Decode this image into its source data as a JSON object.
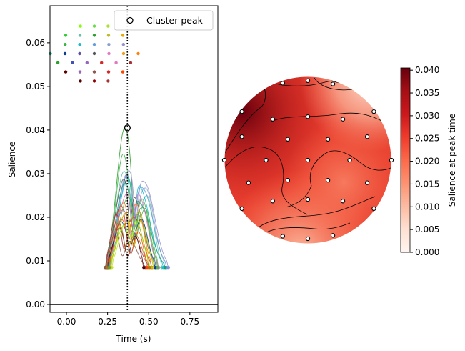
{
  "chart_data": [
    {
      "type": "line",
      "xlabel": "Time (s)",
      "ylabel": "Salience",
      "xlim": [
        -0.1,
        0.92
      ],
      "ylim": [
        -0.0018,
        0.0685
      ],
      "xticks": [
        0.0,
        0.25,
        0.5,
        0.75
      ],
      "xtick_labels": [
        "0.00",
        "0.25",
        "0.50",
        "0.75"
      ],
      "yticks": [
        0.0,
        0.01,
        0.02,
        0.03,
        0.04,
        0.05,
        0.06
      ],
      "ytick_labels": [
        "0.00",
        "0.01",
        "0.02",
        "0.03",
        "0.04",
        "0.05",
        "0.06"
      ],
      "peak_time": 0.37,
      "peak_value": 0.0405,
      "horizontal_line_y": 0.0,
      "legend": {
        "label": "Cluster peak",
        "placement": "top-right"
      },
      "series": [
        {
          "color": "#2ca02c",
          "start": 0.25,
          "end": 0.545,
          "peak_t": 0.355,
          "peak": 0.0405,
          "second_t": 0.475,
          "second": 0.021
        },
        {
          "color": "#3cb44b",
          "start": 0.255,
          "end": 0.56,
          "peak_t": 0.345,
          "peak": 0.0345,
          "second_t": 0.48,
          "second": 0.023
        },
        {
          "color": "#66c2a5",
          "start": 0.245,
          "end": 0.58,
          "peak_t": 0.35,
          "peak": 0.0305,
          "second_t": 0.49,
          "second": 0.026
        },
        {
          "color": "#8da0cb",
          "start": 0.26,
          "end": 0.6,
          "peak_t": 0.36,
          "peak": 0.029,
          "second_t": 0.485,
          "second": 0.0275
        },
        {
          "color": "#9a8fd1",
          "start": 0.265,
          "end": 0.62,
          "peak_t": 0.365,
          "peak": 0.0275,
          "second_t": 0.48,
          "second": 0.0285
        },
        {
          "color": "#5e9ed6",
          "start": 0.255,
          "end": 0.61,
          "peak_t": 0.355,
          "peak": 0.0265,
          "second_t": 0.47,
          "second": 0.027
        },
        {
          "color": "#17becf",
          "start": 0.25,
          "end": 0.59,
          "peak_t": 0.36,
          "peak": 0.0255,
          "second_t": 0.46,
          "second": 0.025
        },
        {
          "color": "#1b9e77",
          "start": 0.245,
          "end": 0.6,
          "peak_t": 0.345,
          "peak": 0.025,
          "second_t": 0.455,
          "second": 0.023
        },
        {
          "color": "#555555",
          "start": 0.24,
          "end": 0.54,
          "peak_t": 0.34,
          "peak": 0.0265,
          "second_t": 0.43,
          "second": 0.0215
        },
        {
          "color": "#e377c2",
          "start": 0.255,
          "end": 0.56,
          "peak_t": 0.355,
          "peak": 0.023,
          "second_t": 0.45,
          "second": 0.024
        },
        {
          "color": "#d62728",
          "start": 0.245,
          "end": 0.52,
          "peak_t": 0.325,
          "peak": 0.0215,
          "second_t": 0.42,
          "second": 0.02
        },
        {
          "color": "#a83232",
          "start": 0.24,
          "end": 0.5,
          "peak_t": 0.3,
          "peak": 0.02,
          "second_t": 0.4,
          "second": 0.0175
        },
        {
          "color": "#9467bd",
          "start": 0.25,
          "end": 0.55,
          "peak_t": 0.335,
          "peak": 0.0205,
          "second_t": 0.44,
          "second": 0.021
        },
        {
          "color": "#ff7f0e",
          "start": 0.26,
          "end": 0.52,
          "peak_t": 0.34,
          "peak": 0.022,
          "second_t": 0.43,
          "second": 0.023
        },
        {
          "color": "#bcbd22",
          "start": 0.27,
          "end": 0.53,
          "peak_t": 0.35,
          "peak": 0.02,
          "second_t": 0.445,
          "second": 0.0215
        },
        {
          "color": "#c7e02a",
          "start": 0.275,
          "end": 0.535,
          "peak_t": 0.36,
          "peak": 0.0185,
          "second_t": 0.455,
          "second": 0.02
        },
        {
          "color": "#7fff00",
          "start": 0.265,
          "end": 0.51,
          "peak_t": 0.345,
          "peak": 0.0175,
          "second_t": 0.43,
          "second": 0.019
        },
        {
          "color": "#8c564b",
          "start": 0.235,
          "end": 0.48,
          "peak_t": 0.29,
          "peak": 0.017,
          "second_t": 0.39,
          "second": 0.015
        },
        {
          "color": "#5a0000",
          "start": 0.245,
          "end": 0.47,
          "peak_t": 0.32,
          "peak": 0.0175,
          "second_t": 0.42,
          "second": 0.016
        },
        {
          "color": "#0b3d91",
          "start": 0.25,
          "end": 0.54,
          "peak_t": 0.33,
          "peak": 0.019,
          "second_t": 0.455,
          "second": 0.0205
        },
        {
          "color": "#e6ab02",
          "start": 0.265,
          "end": 0.5,
          "peak_t": 0.36,
          "peak": 0.021,
          "second_t": 0.455,
          "second": 0.0185
        },
        {
          "color": "#ff4500",
          "start": 0.255,
          "end": 0.49,
          "peak_t": 0.335,
          "peak": 0.0195,
          "second_t": 0.44,
          "second": 0.017
        },
        {
          "color": "#4daf4a",
          "start": 0.26,
          "end": 0.555,
          "peak_t": 0.37,
          "peak": 0.024,
          "second_t": 0.47,
          "second": 0.0225
        },
        {
          "color": "#a6761d",
          "start": 0.245,
          "end": 0.505,
          "peak_t": 0.315,
          "peak": 0.0185,
          "second_t": 0.42,
          "second": 0.0165
        }
      ],
      "sensor_inset_colors": [
        "#7fff00",
        "#66dd44",
        "#a6e22e",
        "#33cc33",
        "#66c2a5",
        "#2ca02c",
        "#bcbd22",
        "#e6ab02",
        "#3cb44b",
        "#17becf",
        "#5e9ed6",
        "#8da0cb",
        "#9a8fd1",
        "#1b9e77",
        "#0b3d91",
        "#5e4fa2",
        "#555555",
        "#e377c2",
        "#f39c12",
        "#ff7f0e",
        "#2ca02c",
        "#3f51b5",
        "#9467bd",
        "#d62728",
        "#e377c2",
        "#a83232",
        "#5a0000",
        "#9467bd",
        "#8c564b",
        "#d62728",
        "#ff4500",
        "#5a0000",
        "#8c0000",
        "#a83232"
      ]
    },
    {
      "type": "heatmap",
      "colorbar_label": "Salience at peak time",
      "clim": [
        0.0,
        0.0405
      ],
      "cticks": [
        0.0,
        0.005,
        0.01,
        0.015,
        0.02,
        0.025,
        0.03,
        0.035,
        0.04
      ],
      "ctick_labels": [
        "0.000",
        "0.005",
        "0.010",
        "0.015",
        "0.020",
        "0.025",
        "0.030",
        "0.035",
        "0.040"
      ],
      "colormap": [
        "#fff5f0",
        "#fee0d2",
        "#fcbba1",
        "#fc9272",
        "#fb6a4a",
        "#ef3b2c",
        "#cb181d",
        "#a50f15",
        "#67000d"
      ]
    }
  ]
}
